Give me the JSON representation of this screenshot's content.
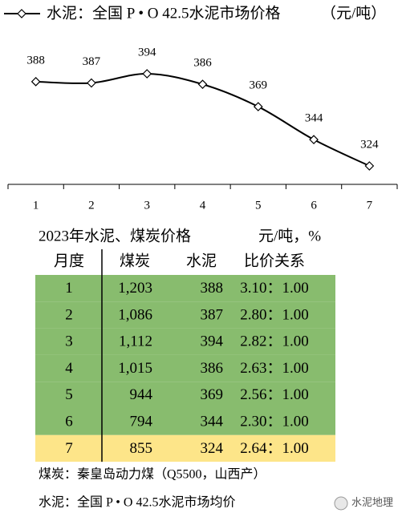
{
  "chart_data": {
    "type": "line",
    "categories": [
      "1",
      "2",
      "3",
      "4",
      "5",
      "6",
      "7"
    ],
    "series": [
      {
        "name": "水泥：全国 P • O 42.5水泥市场价格",
        "color": "#000000",
        "values": [
          388,
          387,
          394,
          386,
          369,
          344,
          324
        ]
      }
    ],
    "unit_note": "（元/吨）"
  },
  "table": {
    "title": "2023年水泥、煤炭价格",
    "unit": "元/吨，%",
    "header": [
      "月度",
      "煤炭",
      "水泥",
      "比价关系"
    ],
    "rows": [
      [
        "1",
        "1,203",
        "388",
        "3.10：1.00"
      ],
      [
        "2",
        "1,086",
        "387",
        "2.80：1.00"
      ],
      [
        "3",
        "1,112",
        "394",
        "2.82：1.00"
      ],
      [
        "4",
        "1,015",
        "386",
        "2.63：1.00"
      ],
      [
        "5",
        "944",
        "369",
        "2.56：1.00"
      ],
      [
        "6",
        "794",
        "344",
        "2.30：1.00"
      ],
      [
        "7",
        "855",
        "324",
        "2.64：1.00"
      ]
    ]
  },
  "notes": [
    "煤炭：秦皇岛动力煤（Q5500，山西产）",
    "水泥：全国 P • O 42.5水泥市场均价"
  ],
  "watermark": "水泥地理"
}
